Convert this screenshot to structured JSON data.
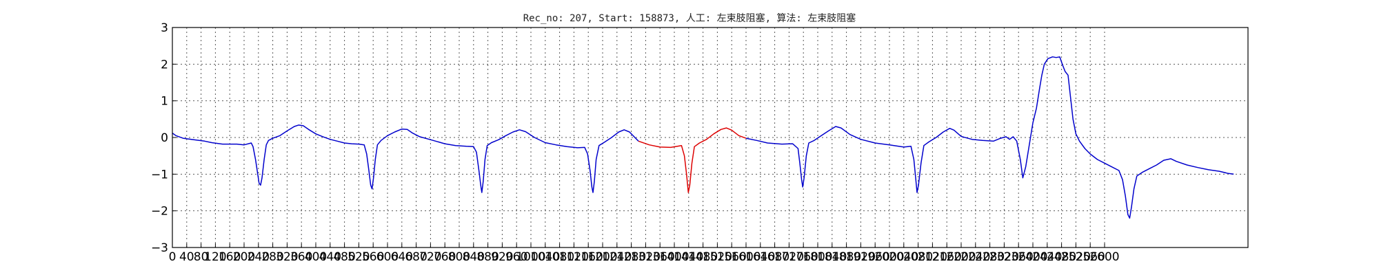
{
  "chart_data": {
    "type": "line",
    "title": "Rec_no: 207, Start: 158873, 人工: 左束肢阻塞, 算法: 左束肢阻塞",
    "xlabel": "",
    "ylabel": "",
    "xlim": [
      0,
      3000
    ],
    "ylim": [
      -3,
      3
    ],
    "grid": true,
    "legend": "none",
    "x_ticks": [
      0,
      40,
      80,
      120,
      160,
      200,
      240,
      280,
      320,
      360,
      400,
      440,
      480,
      520,
      560,
      600,
      640,
      680,
      720,
      760,
      800,
      840,
      880,
      920,
      960,
      1000,
      1040,
      1080,
      1120,
      1160,
      1200,
      1240,
      1280,
      1320,
      1360,
      1400,
      1440,
      1480,
      1520,
      1560,
      1600,
      1640,
      1680,
      1720,
      1760,
      1800,
      1840,
      1880,
      1920,
      1960,
      2000,
      2040,
      2080,
      2120,
      2160,
      2200,
      2240,
      2280,
      2320,
      2360,
      2400,
      2440,
      2480,
      2520,
      2560,
      2600
    ],
    "x_tick_labels": [
      "0",
      "40",
      "80",
      "120",
      "160",
      "200",
      "240",
      "280",
      "320",
      "360",
      "400",
      "440",
      "480",
      "520",
      "560",
      "600",
      "640",
      "680",
      "720",
      "760",
      "800",
      "840",
      "880",
      "920",
      "960",
      "1000",
      "1040",
      "1080",
      "1120",
      "1160",
      "1200",
      "1240",
      "1280",
      "1320",
      "1360",
      "1400",
      "1440",
      "1480",
      "1520",
      "1560",
      "1600",
      "1640",
      "1680",
      "1720",
      "1760",
      "1800",
      "1840",
      "1880",
      "1920",
      "1960",
      "2000",
      "2040",
      "2080",
      "2120",
      "2160",
      "2200",
      "2240",
      "2280",
      "2320",
      "2360",
      "2400",
      "2440",
      "2480",
      "2520",
      "2560",
      "2600"
    ],
    "y_ticks": [
      -3,
      -2,
      -1,
      0,
      1,
      2,
      3
    ],
    "y_tick_labels": [
      "−3",
      "−2",
      "−1",
      "0",
      "1",
      "2",
      "3"
    ],
    "series": [
      {
        "color": "#0000cc",
        "points": [
          [
            0,
            0.12
          ],
          [
            10,
            0.05
          ],
          [
            30,
            -0.02
          ],
          [
            60,
            -0.06
          ],
          [
            90,
            -0.1
          ],
          [
            110,
            -0.14
          ],
          [
            140,
            -0.18
          ],
          [
            180,
            -0.18
          ],
          [
            200,
            -0.2
          ],
          [
            220,
            -0.15
          ],
          [
            225,
            -0.25
          ],
          [
            232,
            -0.6
          ],
          [
            238,
            -1.0
          ],
          [
            242,
            -1.25
          ],
          [
            246,
            -1.3
          ],
          [
            250,
            -1.1
          ],
          [
            256,
            -0.6
          ],
          [
            262,
            -0.2
          ],
          [
            268,
            -0.08
          ],
          [
            280,
            -0.02
          ],
          [
            300,
            0.05
          ],
          [
            320,
            0.18
          ],
          [
            340,
            0.3
          ],
          [
            352,
            0.34
          ],
          [
            365,
            0.32
          ],
          [
            380,
            0.22
          ],
          [
            400,
            0.1
          ],
          [
            420,
            0.02
          ],
          [
            440,
            -0.05
          ],
          [
            460,
            -0.1
          ],
          [
            480,
            -0.15
          ],
          [
            500,
            -0.17
          ],
          [
            520,
            -0.18
          ],
          [
            535,
            -0.2
          ],
          [
            542,
            -0.45
          ],
          [
            548,
            -0.9
          ],
          [
            553,
            -1.3
          ],
          [
            557,
            -1.4
          ],
          [
            561,
            -1.1
          ],
          [
            566,
            -0.6
          ],
          [
            572,
            -0.2
          ],
          [
            582,
            -0.08
          ],
          [
            600,
            0.05
          ],
          [
            620,
            0.15
          ],
          [
            640,
            0.23
          ],
          [
            655,
            0.22
          ],
          [
            670,
            0.12
          ],
          [
            690,
            0.02
          ],
          [
            720,
            -0.06
          ],
          [
            760,
            -0.17
          ],
          [
            790,
            -0.22
          ],
          [
            820,
            -0.24
          ],
          [
            840,
            -0.25
          ],
          [
            848,
            -0.4
          ],
          [
            855,
            -0.9
          ],
          [
            860,
            -1.3
          ],
          [
            863,
            -1.5
          ],
          [
            867,
            -1.2
          ],
          [
            872,
            -0.6
          ],
          [
            878,
            -0.22
          ],
          [
            890,
            -0.14
          ],
          [
            910,
            -0.06
          ],
          [
            930,
            0.05
          ],
          [
            950,
            0.15
          ],
          [
            968,
            0.21
          ],
          [
            985,
            0.16
          ],
          [
            1010,
            0.0
          ],
          [
            1040,
            -0.14
          ],
          [
            1070,
            -0.2
          ],
          [
            1100,
            -0.25
          ],
          [
            1130,
            -0.28
          ],
          [
            1150,
            -0.27
          ],
          [
            1158,
            -0.45
          ],
          [
            1165,
            -0.9
          ],
          [
            1170,
            -1.35
          ],
          [
            1173,
            -1.5
          ],
          [
            1177,
            -1.2
          ],
          [
            1182,
            -0.6
          ],
          [
            1190,
            -0.22
          ],
          [
            1205,
            -0.13
          ],
          [
            1225,
            0.0
          ],
          [
            1245,
            0.15
          ],
          [
            1260,
            0.21
          ],
          [
            1275,
            0.15
          ],
          [
            1300,
            -0.1
          ]
        ]
      },
      {
        "color": "#dd0000",
        "points": [
          [
            1300,
            -0.1
          ],
          [
            1330,
            -0.2
          ],
          [
            1360,
            -0.26
          ],
          [
            1390,
            -0.27
          ],
          [
            1420,
            -0.22
          ],
          [
            1428,
            -0.5
          ],
          [
            1434,
            -1.0
          ],
          [
            1439,
            -1.5
          ],
          [
            1443,
            -1.3
          ],
          [
            1449,
            -0.7
          ],
          [
            1456,
            -0.25
          ],
          [
            1470,
            -0.15
          ],
          [
            1490,
            -0.05
          ],
          [
            1510,
            0.1
          ],
          [
            1530,
            0.22
          ],
          [
            1545,
            0.26
          ],
          [
            1560,
            0.2
          ],
          [
            1580,
            0.05
          ],
          [
            1600,
            -0.02
          ]
        ]
      },
      {
        "color": "#0000cc",
        "points": [
          [
            1600,
            -0.02
          ],
          [
            1630,
            -0.08
          ],
          [
            1660,
            -0.15
          ],
          [
            1700,
            -0.18
          ],
          [
            1730,
            -0.17
          ],
          [
            1745,
            -0.3
          ],
          [
            1750,
            -0.7
          ],
          [
            1755,
            -1.15
          ],
          [
            1758,
            -1.35
          ],
          [
            1762,
            -1.1
          ],
          [
            1768,
            -0.5
          ],
          [
            1775,
            -0.15
          ],
          [
            1790,
            -0.08
          ],
          [
            1810,
            0.05
          ],
          [
            1830,
            0.18
          ],
          [
            1850,
            0.3
          ],
          [
            1865,
            0.26
          ],
          [
            1890,
            0.08
          ],
          [
            1920,
            -0.05
          ],
          [
            1960,
            -0.15
          ],
          [
            2000,
            -0.2
          ],
          [
            2040,
            -0.26
          ],
          [
            2060,
            -0.24
          ],
          [
            2068,
            -0.6
          ],
          [
            2073,
            -1.1
          ],
          [
            2077,
            -1.5
          ],
          [
            2081,
            -1.3
          ],
          [
            2088,
            -0.7
          ],
          [
            2096,
            -0.22
          ],
          [
            2110,
            -0.12
          ],
          [
            2130,
            0.0
          ],
          [
            2150,
            0.15
          ],
          [
            2168,
            0.25
          ],
          [
            2180,
            0.2
          ],
          [
            2200,
            0.03
          ],
          [
            2230,
            -0.05
          ],
          [
            2260,
            -0.08
          ],
          [
            2290,
            -0.1
          ],
          [
            2310,
            -0.02
          ],
          [
            2325,
            0.02
          ],
          [
            2335,
            -0.05
          ],
          [
            2345,
            0.02
          ],
          [
            2355,
            -0.1
          ],
          [
            2365,
            -0.6
          ],
          [
            2372,
            -1.1
          ],
          [
            2380,
            -0.8
          ],
          [
            2390,
            -0.2
          ],
          [
            2400,
            0.4
          ],
          [
            2410,
            0.8
          ],
          [
            2418,
            1.3
          ],
          [
            2425,
            1.7
          ],
          [
            2432,
            2.0
          ],
          [
            2442,
            2.15
          ],
          [
            2455,
            2.2
          ],
          [
            2465,
            2.18
          ],
          [
            2475,
            2.2
          ],
          [
            2482,
            2.0
          ],
          [
            2490,
            1.8
          ],
          [
            2498,
            1.7
          ],
          [
            2505,
            1.1
          ],
          [
            2512,
            0.5
          ],
          [
            2520,
            0.1
          ],
          [
            2530,
            -0.1
          ],
          [
            2545,
            -0.3
          ],
          [
            2560,
            -0.45
          ],
          [
            2580,
            -0.6
          ],
          [
            2600,
            -0.7
          ],
          [
            2620,
            -0.8
          ],
          [
            2640,
            -0.9
          ],
          [
            2650,
            -1.15
          ],
          [
            2658,
            -1.6
          ],
          [
            2665,
            -2.1
          ],
          [
            2670,
            -2.2
          ],
          [
            2675,
            -1.9
          ],
          [
            2682,
            -1.4
          ],
          [
            2690,
            -1.05
          ],
          [
            2705,
            -0.95
          ],
          [
            2725,
            -0.85
          ],
          [
            2745,
            -0.75
          ],
          [
            2765,
            -0.62
          ],
          [
            2785,
            -0.58
          ],
          [
            2800,
            -0.65
          ],
          [
            2830,
            -0.75
          ],
          [
            2860,
            -0.82
          ],
          [
            2890,
            -0.88
          ],
          [
            2920,
            -0.92
          ],
          [
            2945,
            -0.98
          ],
          [
            2960,
            -1.0
          ]
        ]
      }
    ]
  }
}
